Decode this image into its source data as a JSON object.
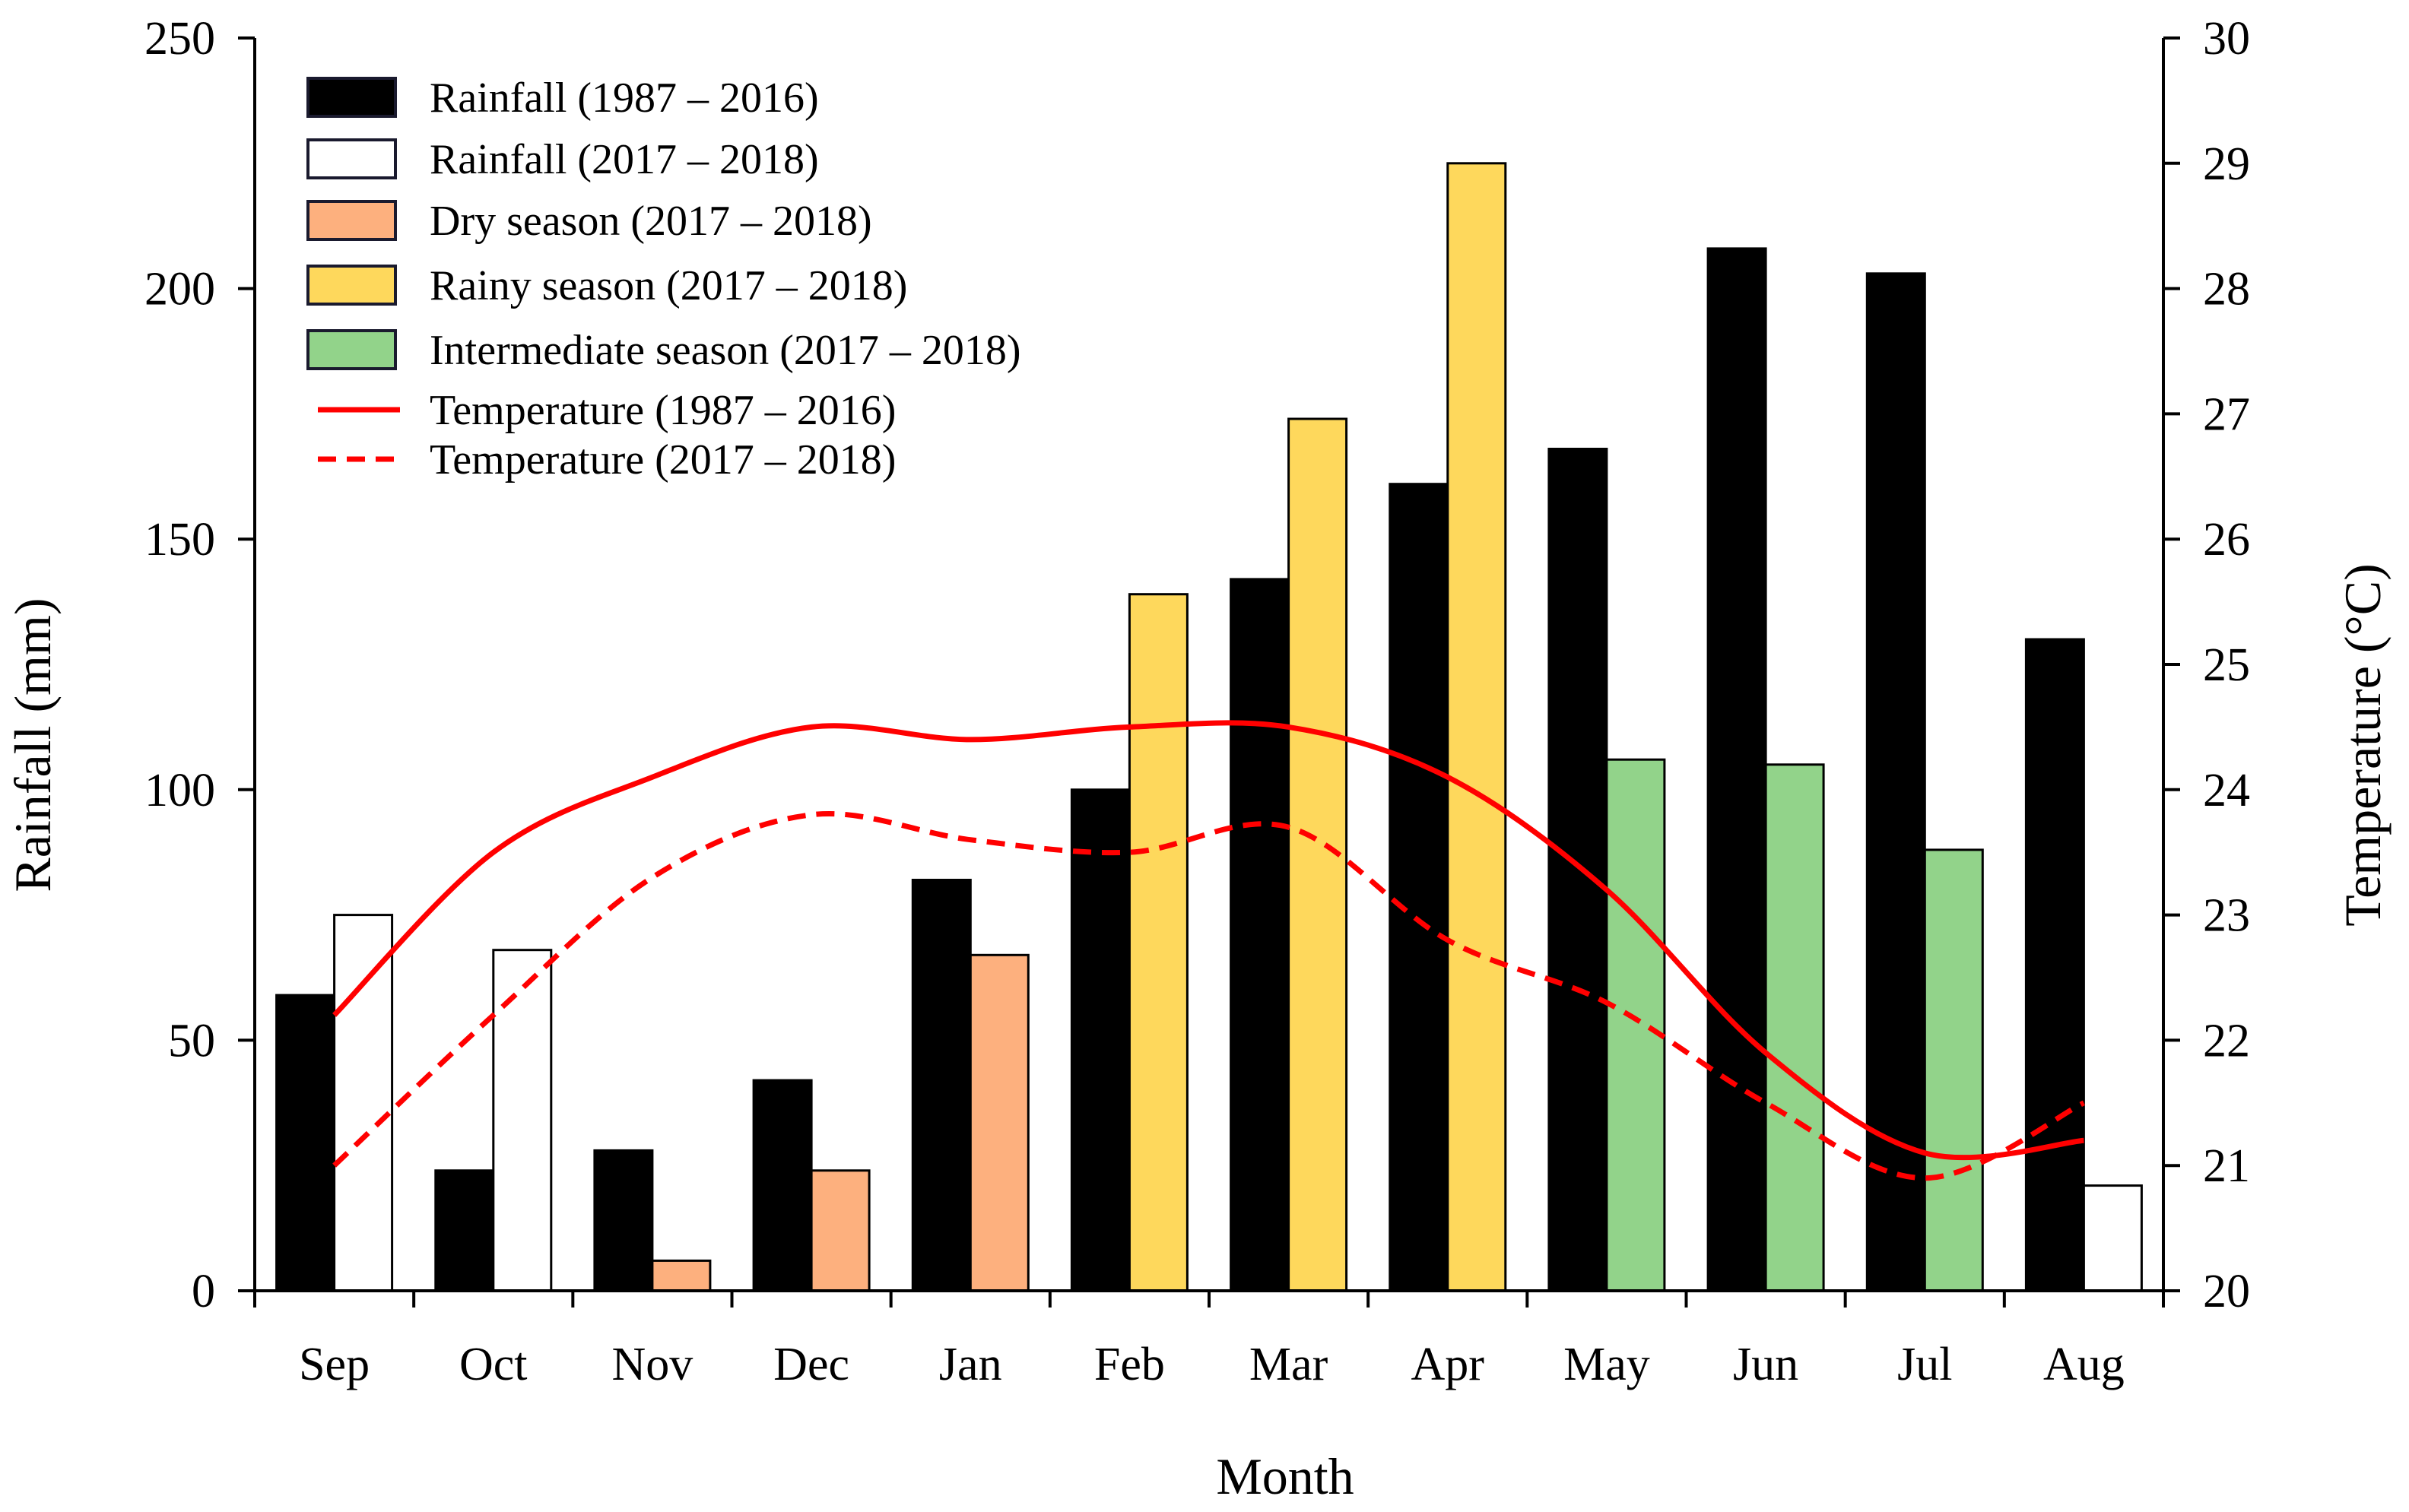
{
  "chart_data": {
    "type": "bar",
    "title": "",
    "xlabel": "Month",
    "ylabel": "Rainfall (mm)",
    "y2label": "Temperature (°C)",
    "ylim": [
      0,
      250
    ],
    "y2lim": [
      20,
      30
    ],
    "yticks": [
      0,
      50,
      100,
      150,
      200,
      250
    ],
    "y2ticks": [
      20,
      21,
      22,
      23,
      24,
      25,
      26,
      27,
      28,
      29,
      30
    ],
    "categories": [
      "Sep",
      "Oct",
      "Nov",
      "Dec",
      "Jan",
      "Feb",
      "Mar",
      "Apr",
      "May",
      "Jun",
      "Jul",
      "Aug"
    ],
    "series": [
      {
        "name": "Rainfall (1987 – 2016)",
        "axis": "left",
        "values": [
          59,
          24,
          28,
          42,
          82,
          100,
          142,
          161,
          168,
          208,
          203,
          130
        ],
        "colors": [
          "#000000",
          "#000000",
          "#000000",
          "#000000",
          "#000000",
          "#000000",
          "#000000",
          "#000000",
          "#000000",
          "#000000",
          "#000000",
          "#000000"
        ]
      },
      {
        "name": "Rainfall (2017 – 2018)",
        "axis": "left",
        "values": [
          75,
          68,
          6,
          24,
          67,
          139,
          174,
          225,
          106,
          105,
          88,
          21
        ],
        "colors": [
          "#ffffff",
          "#ffffff",
          "#fdb07e",
          "#fdb07e",
          "#fdb07e",
          "#fed85c",
          "#fed85c",
          "#fed85c",
          "#92d38a",
          "#92d38a",
          "#92d38a",
          "#ffffff"
        ]
      },
      {
        "name": "Temperature (1987 – 2016)",
        "axis": "right",
        "style": "solid",
        "color": "#ff0000",
        "values": [
          22.2,
          23.5,
          24.1,
          24.5,
          24.4,
          24.5,
          24.5,
          24.1,
          23.2,
          21.9,
          21.1,
          21.2
        ]
      },
      {
        "name": "Temperature (2017 – 2018)",
        "axis": "right",
        "style": "dashed",
        "color": "#ff0000",
        "values": [
          21.0,
          22.2,
          23.3,
          23.8,
          23.6,
          23.5,
          23.7,
          22.8,
          22.3,
          21.5,
          20.9,
          21.5
        ]
      }
    ],
    "legend": {
      "position": "top-left",
      "entries": [
        {
          "label": "Rainfall (1987 – 2016)",
          "kind": "box",
          "color": "#000000"
        },
        {
          "label": "Rainfall (2017 – 2018)",
          "kind": "box",
          "color": "#ffffff"
        },
        {
          "label": "Dry season (2017 – 2018)",
          "kind": "box",
          "color": "#fdb07e"
        },
        {
          "label": "Rainy season (2017 – 2018)",
          "kind": "box",
          "color": "#fed85c"
        },
        {
          "label": "Intermediate season (2017 – 2018)",
          "kind": "box",
          "color": "#92d38a"
        },
        {
          "label": "Temperature (1987 – 2016)",
          "kind": "line-solid",
          "color": "#ff0000"
        },
        {
          "label": "Temperature (2017 – 2018)",
          "kind": "line-dashed",
          "color": "#ff0000"
        }
      ]
    }
  }
}
